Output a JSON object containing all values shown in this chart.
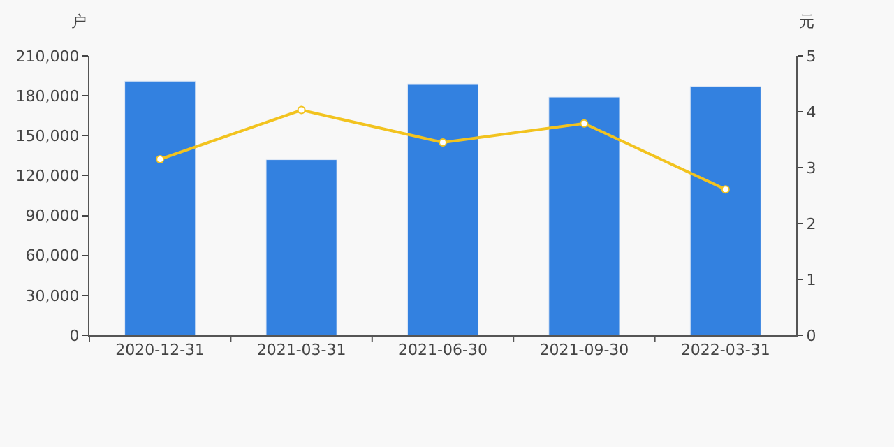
{
  "chart_data": {
    "type": "bar",
    "ylabel": "户",
    "y2label": "元",
    "categories": [
      "2020-12-31",
      "2021-03-31",
      "2021-06-30",
      "2021-09-30",
      "2022-03-31"
    ],
    "series": [
      {
        "color": "#3381e0",
        "values": [
          191000,
          132000,
          189000,
          179000,
          187000
        ]
      },
      {
        "type": "line",
        "axis": "y2",
        "color": "#f2c31f",
        "marker": "circle",
        "values": [
          3.15,
          4.03,
          3.45,
          3.79,
          2.61
        ]
      }
    ],
    "ylim": [
      0,
      210000
    ],
    "yticks": [
      {
        "value": 0,
        "label": "0"
      },
      {
        "value": 30000,
        "label": "30,000"
      },
      {
        "value": 60000,
        "label": "60,000"
      },
      {
        "value": 90000,
        "label": "90,000"
      },
      {
        "value": 120000,
        "label": "120,000"
      },
      {
        "value": 150000,
        "label": "150,000"
      },
      {
        "value": 180000,
        "label": "180,000"
      },
      {
        "value": 210000,
        "label": "210,000"
      }
    ],
    "y2lim": [
      0,
      5
    ],
    "y2ticks": [
      0,
      1,
      2,
      3,
      4,
      5
    ],
    "grid": false
  }
}
